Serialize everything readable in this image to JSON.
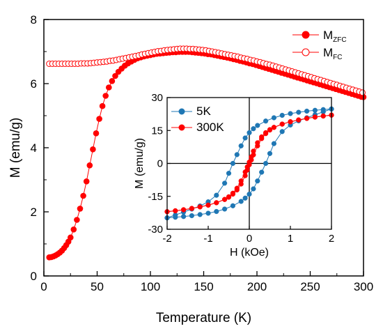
{
  "chart_data": [
    {
      "type": "scatter",
      "xlabel": "Temperature (K)",
      "ylabel": "M (emu/g)",
      "xlim": [
        0,
        300
      ],
      "ylim": [
        0,
        8
      ],
      "xticks": [
        0,
        50,
        100,
        150,
        200,
        250,
        300
      ],
      "yticks": [
        0,
        2,
        4,
        6,
        8
      ],
      "legend_position": "top-right",
      "grid": false,
      "series": [
        {
          "name": "M_ZFC",
          "name_main": "M",
          "name_sub": "ZFC",
          "color": "#ff0000",
          "marker": "filled-circle",
          "x": [
            5,
            7,
            9,
            11,
            13,
            15,
            17,
            19,
            21,
            23,
            25,
            28,
            31,
            34,
            37,
            40,
            43,
            46,
            49,
            52,
            55,
            58,
            61,
            64,
            67,
            70,
            73,
            76,
            79,
            82,
            85,
            88,
            91,
            94,
            97,
            100,
            103,
            106,
            109,
            112,
            115,
            118,
            121,
            124,
            127,
            130,
            133,
            136,
            139,
            142,
            145,
            148,
            151,
            154,
            157,
            160,
            163,
            166,
            169,
            172,
            175,
            178,
            181,
            184,
            187,
            190,
            193,
            196,
            199,
            202,
            205,
            208,
            211,
            214,
            217,
            220,
            223,
            226,
            229,
            232,
            235,
            238,
            241,
            244,
            247,
            250,
            253,
            256,
            259,
            262,
            265,
            268,
            271,
            274,
            277,
            280,
            283,
            286,
            289,
            292,
            295,
            298,
            300
          ],
          "y": [
            0.58,
            0.59,
            0.61,
            0.64,
            0.68,
            0.73,
            0.79,
            0.87,
            0.96,
            1.07,
            1.2,
            1.45,
            1.75,
            2.1,
            2.5,
            2.95,
            3.45,
            3.95,
            4.45,
            4.9,
            5.3,
            5.62,
            5.88,
            6.08,
            6.24,
            6.37,
            6.47,
            6.56,
            6.63,
            6.69,
            6.74,
            6.79,
            6.82,
            6.85,
            6.87,
            6.89,
            6.91,
            6.93,
            6.94,
            6.95,
            6.96,
            6.97,
            6.98,
            6.98,
            6.99,
            6.99,
            6.99,
            6.99,
            6.98,
            6.97,
            6.96,
            6.95,
            6.94,
            6.92,
            6.91,
            6.89,
            6.87,
            6.85,
            6.83,
            6.81,
            6.79,
            6.76,
            6.74,
            6.71,
            6.69,
            6.66,
            6.63,
            6.61,
            6.58,
            6.55,
            6.52,
            6.49,
            6.46,
            6.43,
            6.4,
            6.37,
            6.34,
            6.31,
            6.28,
            6.25,
            6.22,
            6.19,
            6.16,
            6.13,
            6.1,
            6.07,
            6.04,
            6.01,
            5.98,
            5.95,
            5.92,
            5.89,
            5.86,
            5.83,
            5.8,
            5.77,
            5.74,
            5.71,
            5.68,
            5.65,
            5.62,
            5.59,
            5.58
          ]
        },
        {
          "name": "M_FC",
          "name_main": "M",
          "name_sub": "FC",
          "color": "#ff0000",
          "marker": "open-circle",
          "x": [
            5,
            8,
            11,
            14,
            17,
            20,
            23,
            26,
            29,
            32,
            35,
            38,
            41,
            44,
            47,
            50,
            53,
            56,
            59,
            62,
            65,
            68,
            71,
            74,
            77,
            80,
            83,
            86,
            89,
            92,
            95,
            98,
            101,
            104,
            107,
            110,
            113,
            116,
            119,
            122,
            125,
            128,
            131,
            134,
            137,
            140,
            143,
            146,
            149,
            152,
            155,
            158,
            161,
            164,
            167,
            170,
            173,
            176,
            179,
            182,
            185,
            188,
            191,
            194,
            197,
            200,
            203,
            206,
            209,
            212,
            215,
            218,
            221,
            224,
            227,
            230,
            233,
            236,
            239,
            242,
            245,
            248,
            251,
            254,
            257,
            260,
            263,
            266,
            269,
            272,
            275,
            278,
            281,
            284,
            287,
            290,
            293,
            296,
            299
          ],
          "y": [
            6.62,
            6.62,
            6.62,
            6.62,
            6.62,
            6.62,
            6.62,
            6.62,
            6.62,
            6.62,
            6.63,
            6.63,
            6.63,
            6.64,
            6.65,
            6.66,
            6.67,
            6.68,
            6.69,
            6.71,
            6.72,
            6.74,
            6.76,
            6.78,
            6.8,
            6.82,
            6.84,
            6.86,
            6.88,
            6.91,
            6.93,
            6.95,
            6.97,
            6.99,
            7.01,
            7.02,
            7.04,
            7.05,
            7.06,
            7.07,
            7.08,
            7.09,
            7.09,
            7.09,
            7.08,
            7.08,
            7.07,
            7.06,
            7.05,
            7.04,
            7.02,
            7.0,
            6.98,
            6.96,
            6.94,
            6.92,
            6.9,
            6.88,
            6.86,
            6.84,
            6.81,
            6.79,
            6.77,
            6.74,
            6.72,
            6.69,
            6.67,
            6.64,
            6.61,
            6.59,
            6.56,
            6.53,
            6.5,
            6.47,
            6.44,
            6.41,
            6.38,
            6.35,
            6.32,
            6.29,
            6.26,
            6.23,
            6.2,
            6.17,
            6.14,
            6.11,
            6.08,
            6.05,
            6.02,
            5.99,
            5.96,
            5.93,
            5.9,
            5.87,
            5.84,
            5.81,
            5.78,
            5.75,
            5.72
          ]
        }
      ]
    },
    {
      "type": "line",
      "xlabel": "H (kOe)",
      "ylabel": "M (emu/g)",
      "xlim": [
        -2,
        2
      ],
      "ylim": [
        -30,
        30
      ],
      "xticks": [
        -2,
        -1,
        0,
        1,
        2
      ],
      "yticks": [
        -30,
        -15,
        0,
        15,
        30
      ],
      "legend_position": "top-left",
      "grid": false,
      "series": [
        {
          "name": "5K",
          "color": "#1f77b4",
          "marker": "filled-circle",
          "loop_upper": {
            "x": [
              2.0,
              1.8,
              1.6,
              1.4,
              1.2,
              1.0,
              0.8,
              0.6,
              0.4,
              0.2,
              0.1,
              0.0,
              -0.1,
              -0.2,
              -0.3,
              -0.4,
              -0.5,
              -0.6,
              -0.8,
              -1.0,
              -1.2,
              -1.4,
              -1.6,
              -1.8,
              -2.0
            ],
            "y": [
              24.8,
              24.5,
              24.2,
              23.8,
              23.3,
              22.7,
              21.9,
              20.8,
              19.3,
              17.3,
              15.8,
              14.0,
              11.6,
              8.0,
              4.0,
              0.0,
              -4.5,
              -9.0,
              -14.5,
              -17.5,
              -19.4,
              -20.8,
              -22.2,
              -23.5,
              -24.8
            ]
          },
          "loop_lower": {
            "x": [
              -2.0,
              -1.8,
              -1.6,
              -1.4,
              -1.2,
              -1.0,
              -0.8,
              -0.6,
              -0.4,
              -0.2,
              -0.1,
              0.0,
              0.1,
              0.2,
              0.3,
              0.4,
              0.5,
              0.6,
              0.8,
              1.0,
              1.2,
              1.4,
              1.6,
              1.8,
              2.0
            ],
            "y": [
              -24.8,
              -24.5,
              -24.2,
              -23.8,
              -23.3,
              -22.7,
              -21.9,
              -20.8,
              -19.3,
              -17.3,
              -15.8,
              -14.0,
              -11.6,
              -8.0,
              -4.0,
              0.0,
              4.5,
              9.0,
              14.5,
              17.5,
              19.4,
              20.8,
              22.2,
              23.5,
              24.8
            ]
          }
        },
        {
          "name": "300K",
          "color": "#ff0000",
          "marker": "filled-circle",
          "loop_upper": {
            "x": [
              2.0,
              1.8,
              1.6,
              1.4,
              1.2,
              1.0,
              0.8,
              0.6,
              0.5,
              0.4,
              0.3,
              0.2,
              0.1,
              0.05,
              0.0,
              -0.05,
              -0.1,
              -0.2,
              -0.3,
              -0.4,
              -0.5,
              -0.6,
              -0.8,
              -1.0,
              -1.2,
              -1.4,
              -1.6,
              -1.8,
              -2.0
            ],
            "y": [
              22.0,
              21.6,
              21.1,
              20.5,
              19.8,
              19.0,
              17.9,
              16.4,
              15.4,
              14.0,
              12.1,
              9.4,
              5.6,
              3.0,
              0.6,
              -1.6,
              -3.9,
              -8.0,
              -11.3,
              -13.6,
              -15.2,
              -16.4,
              -17.9,
              -19.0,
              -19.8,
              -20.5,
              -21.1,
              -21.6,
              -22.0
            ]
          },
          "loop_lower": {
            "x": [
              -2.0,
              -1.8,
              -1.6,
              -1.4,
              -1.2,
              -1.0,
              -0.8,
              -0.6,
              -0.5,
              -0.4,
              -0.3,
              -0.2,
              -0.1,
              -0.05,
              0.0,
              0.05,
              0.1,
              0.2,
              0.3,
              0.4,
              0.5,
              0.6,
              0.8,
              1.0,
              1.2,
              1.4,
              1.6,
              1.8,
              2.0
            ],
            "y": [
              -22.0,
              -21.6,
              -21.1,
              -20.5,
              -19.8,
              -19.0,
              -17.9,
              -16.4,
              -15.4,
              -14.0,
              -12.1,
              -9.4,
              -5.6,
              -3.0,
              -0.6,
              1.6,
              3.9,
              8.0,
              11.3,
              13.6,
              15.2,
              16.4,
              17.9,
              19.0,
              19.8,
              20.5,
              21.1,
              21.6,
              22.0
            ]
          }
        }
      ]
    }
  ]
}
